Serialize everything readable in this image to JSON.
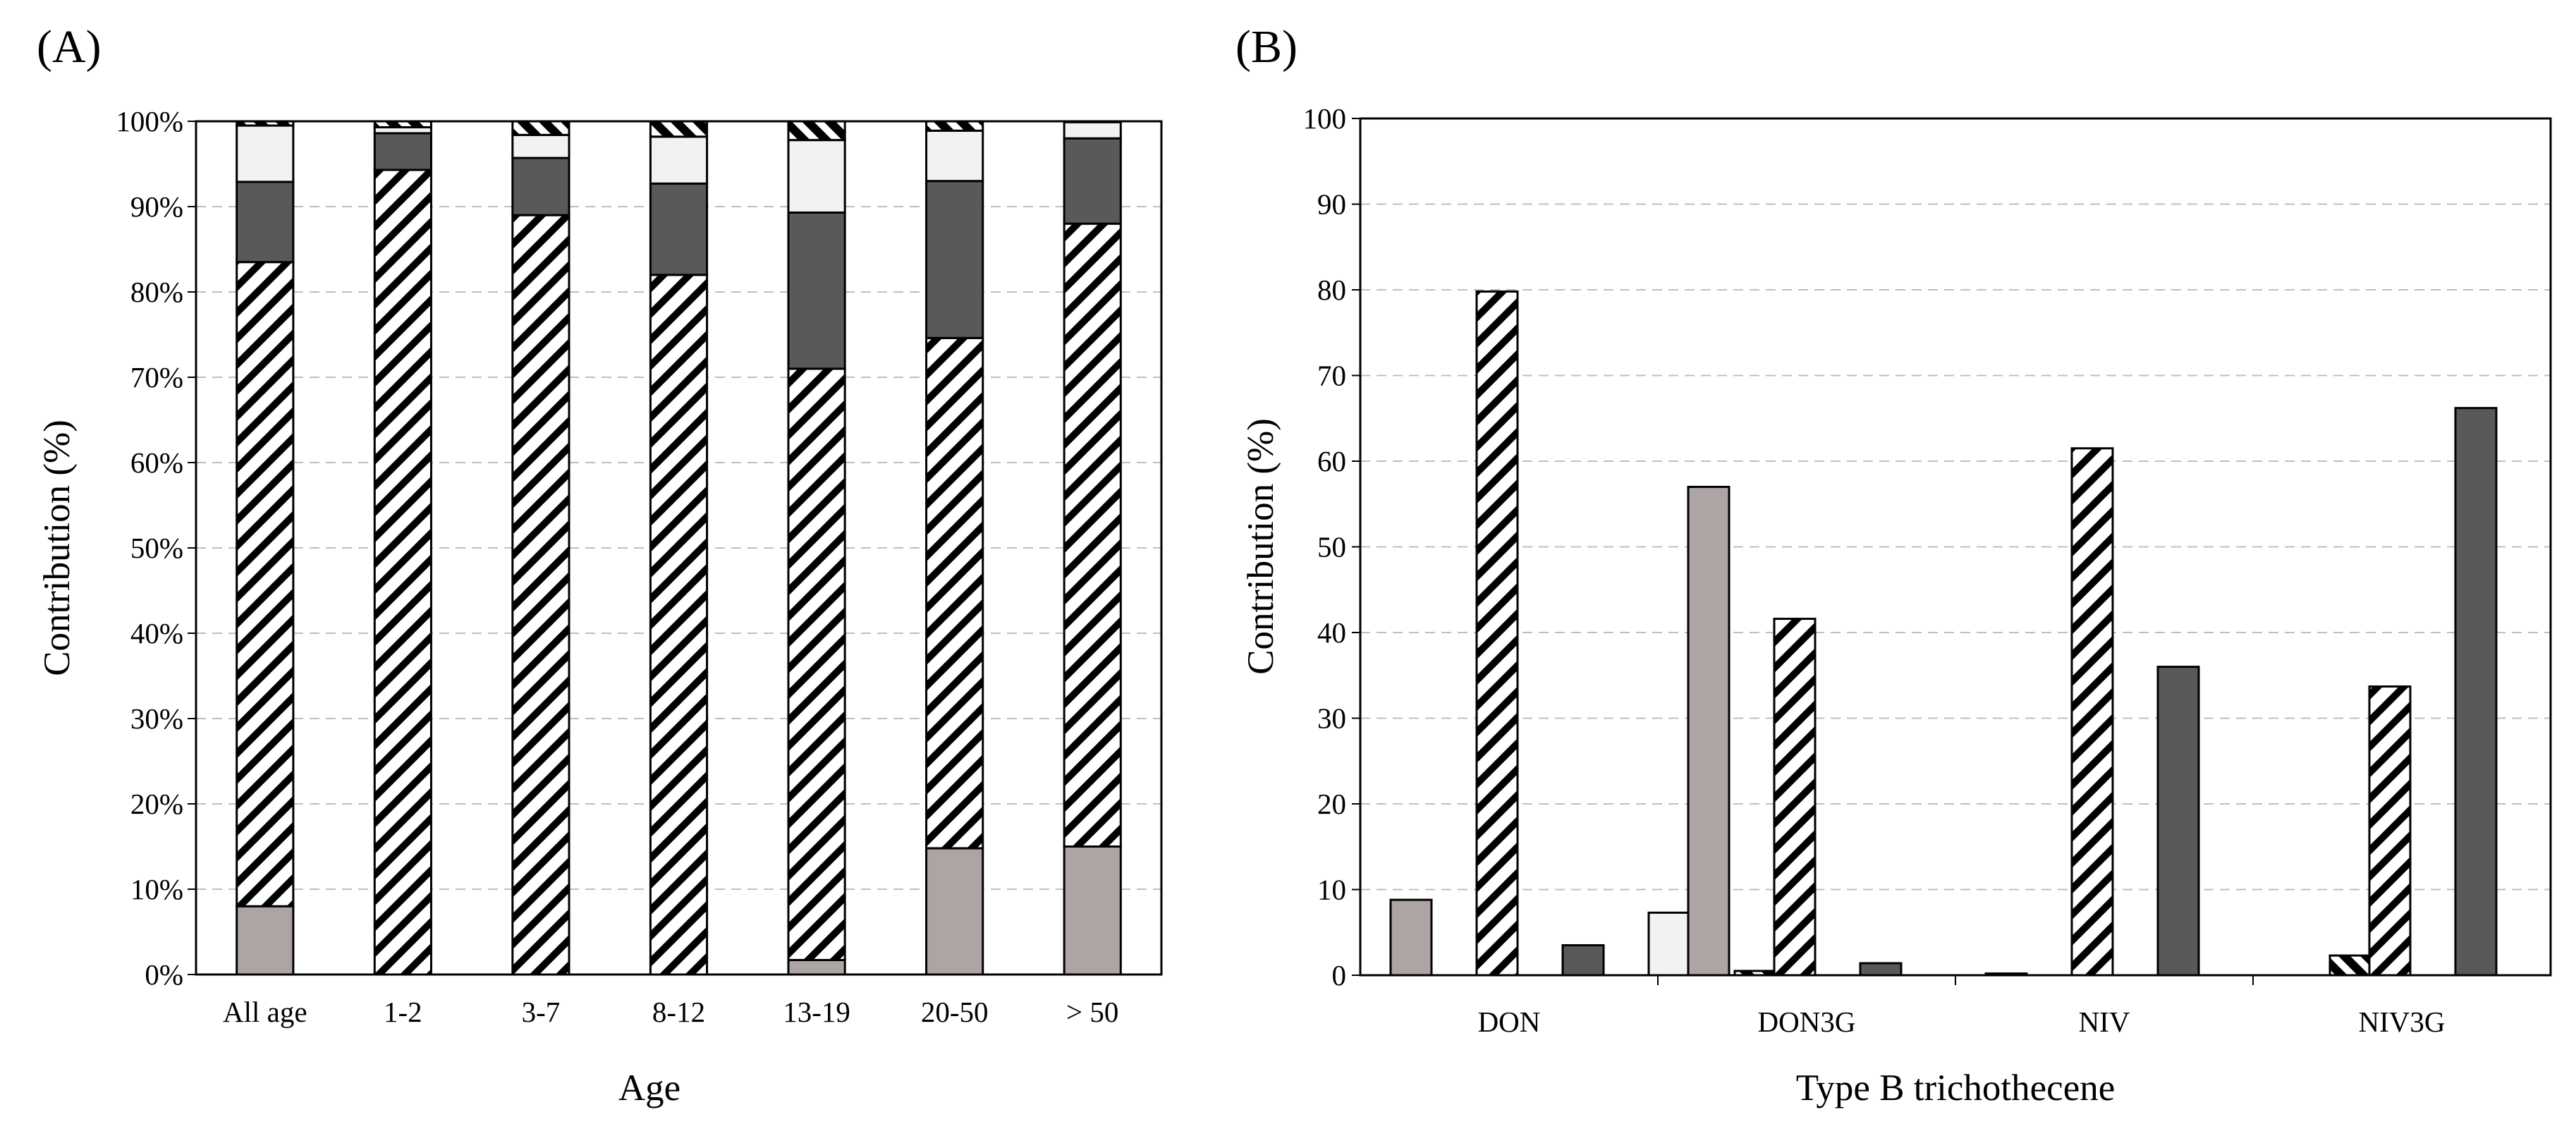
{
  "chart_data": [
    {
      "type": "bar",
      "stacked": true,
      "panel_label": "(A)",
      "xlabel": "Age",
      "ylabel": "Contribution (%)",
      "categories": [
        "All age",
        "1-2",
        "3-7",
        "8-12",
        "13-19",
        "20-50",
        "> 50"
      ],
      "ylim": [
        0,
        100
      ],
      "yticks": [
        "0%",
        "10%",
        "20%",
        "30%",
        "40%",
        "50%",
        "60%",
        "70%",
        "80%",
        "90%",
        "100%"
      ],
      "grid": true,
      "series": [
        {
          "name": "series-1",
          "style": "solid-gray",
          "values": [
            8,
            0,
            0,
            0,
            1.7,
            14.8,
            15
          ]
        },
        {
          "name": "series-2",
          "style": "hatched",
          "values": [
            75.5,
            94.3,
            89,
            82,
            69.3,
            59.8,
            73
          ]
        },
        {
          "name": "series-3",
          "style": "solid-dark",
          "values": [
            9.4,
            4.3,
            6.7,
            10.7,
            18.3,
            18.4,
            10
          ]
        },
        {
          "name": "series-4",
          "style": "solid-light",
          "values": [
            6.6,
            0.7,
            2.7,
            5.5,
            8.5,
            5.9,
            1.9
          ]
        },
        {
          "name": "series-5",
          "style": "hatched-dense",
          "values": [
            0.5,
            0.7,
            1.6,
            1.8,
            2.2,
            1.1,
            0.1
          ]
        }
      ]
    },
    {
      "type": "bar",
      "panel_label": "(B)",
      "xlabel": "Type B trichothecene",
      "ylabel": "Contribution (%)",
      "categories": [
        "DON",
        "DON3G",
        "NIV",
        "NIV3G"
      ],
      "ylim": [
        0,
        100
      ],
      "yticks": [
        "0",
        "10",
        "20",
        "30",
        "40",
        "50",
        "60",
        "70",
        "80",
        "90",
        "100"
      ],
      "grid": true,
      "series": [
        {
          "name": "series-1",
          "style": "solid-gray",
          "values": [
            8.8,
            57,
            0.2,
            0
          ]
        },
        {
          "name": "series-2",
          "style": "hatched",
          "values": [
            79.8,
            41.6,
            61.5,
            33.7
          ]
        },
        {
          "name": "series-3",
          "style": "solid-dark",
          "values": [
            3.5,
            1.4,
            36,
            66.2
          ]
        },
        {
          "name": "series-4",
          "style": "solid-light",
          "values": [
            7.3,
            0,
            0,
            0
          ]
        },
        {
          "name": "series-5",
          "style": "hatched-dense",
          "values": [
            0.5,
            0,
            2.3,
            0
          ]
        }
      ]
    }
  ],
  "styles": {
    "solid-gray": "#aca5a3",
    "solid-dark": "#595959",
    "solid-light": "#f2f2f2",
    "hatched-bg": "#ffffff",
    "grid": "#bfbfbf",
    "stroke": "#000000"
  }
}
